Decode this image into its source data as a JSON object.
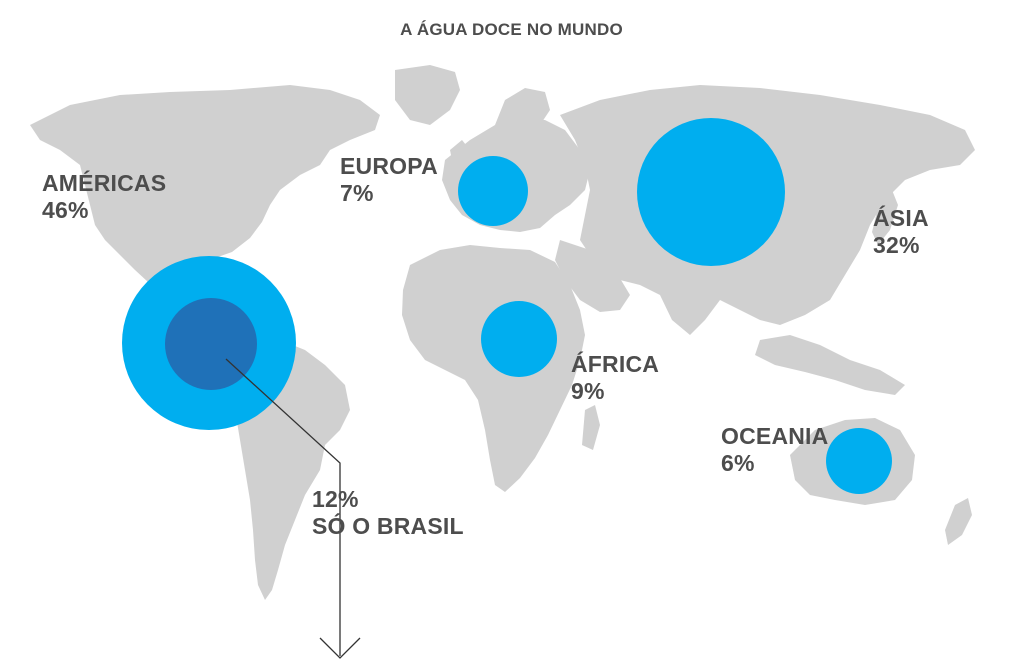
{
  "title": "A ÁGUA DOCE NO MUNDO",
  "colors": {
    "land": "#d0d0d0",
    "bubble": "#00aeef",
    "brazil_bubble": "#1f71b8",
    "text": "#4d4d4d",
    "leader_line": "#333333"
  },
  "regions": [
    {
      "name": "AMÉRICAS",
      "value": "46%",
      "share": 46
    },
    {
      "name": "EUROPA",
      "value": "7%",
      "share": 7
    },
    {
      "name": "ÁSIA",
      "value": "32%",
      "share": 32
    },
    {
      "name": "ÁFRICA",
      "value": "9%",
      "share": 9
    },
    {
      "name": "OCEANIA",
      "value": "6%",
      "share": 6
    }
  ],
  "brazil": {
    "value": "12%",
    "label": "SÓ O BRASIL",
    "share": 12
  }
}
